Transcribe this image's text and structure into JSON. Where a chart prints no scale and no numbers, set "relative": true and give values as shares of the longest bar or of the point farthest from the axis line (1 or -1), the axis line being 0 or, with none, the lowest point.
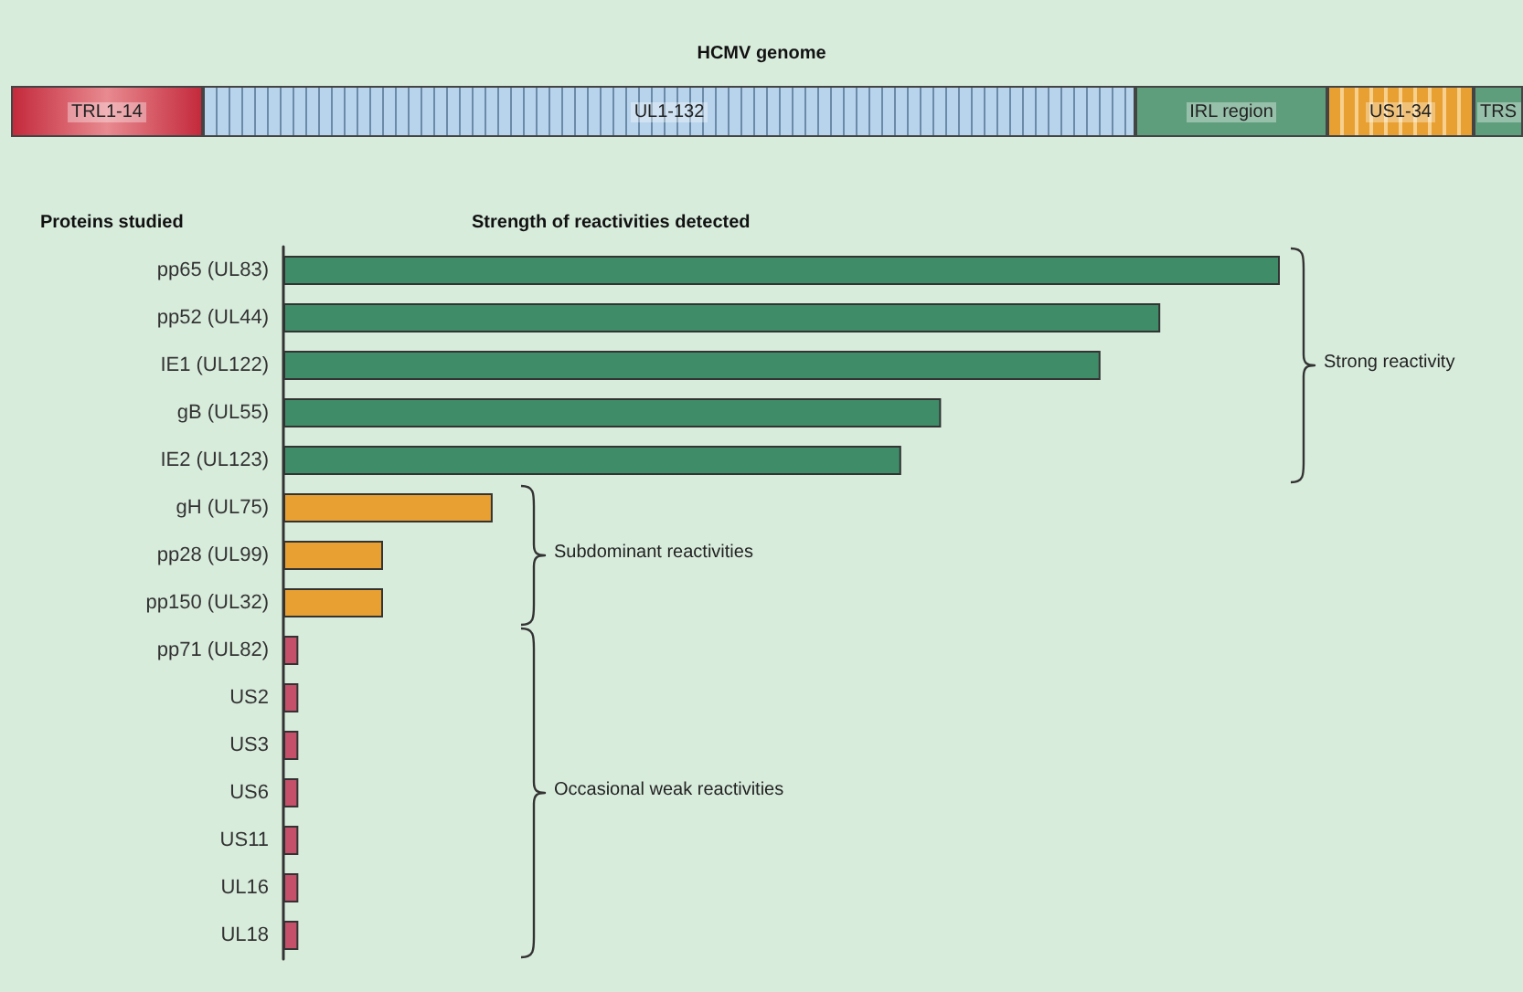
{
  "chart_data": {
    "type": "bar",
    "orientation": "horizontal",
    "relative": true,
    "xlabel": "Strength of reactivities detected",
    "ylabel": "Proteins studied",
    "categories": [
      "pp65 (UL83)",
      "pp52 (UL44)",
      "IE1 (UL122)",
      "gB (UL55)",
      "IE2 (UL123)",
      "gH (UL75)",
      "pp28 (UL99)",
      "pp150 (UL32)",
      "pp71 (UL82)",
      "US2",
      "US3",
      "US6",
      "US11",
      "UL16",
      "UL18"
    ],
    "values": [
      1,
      0.88,
      0.82,
      0.66,
      0.62,
      0.21,
      0.1,
      0.1,
      0.015,
      0.015,
      0.015,
      0.015,
      0.015,
      0.015,
      0.015
    ],
    "colors": [
      "#3f8c68",
      "#3f8c68",
      "#3f8c68",
      "#3f8c68",
      "#3f8c68",
      "#e8a032",
      "#e8a032",
      "#e8a032",
      "#c4506a",
      "#c4506a",
      "#c4506a",
      "#c4506a",
      "#c4506a",
      "#c4506a",
      "#c4506a"
    ],
    "annotations": [
      "HCMV genome",
      "TRL1-14",
      "UL1-132",
      "IRL region",
      "US1-34",
      "TRS",
      "Strong reactivity",
      "Subdominant reactivities",
      "Occasional weak reactivities"
    ]
  }
}
